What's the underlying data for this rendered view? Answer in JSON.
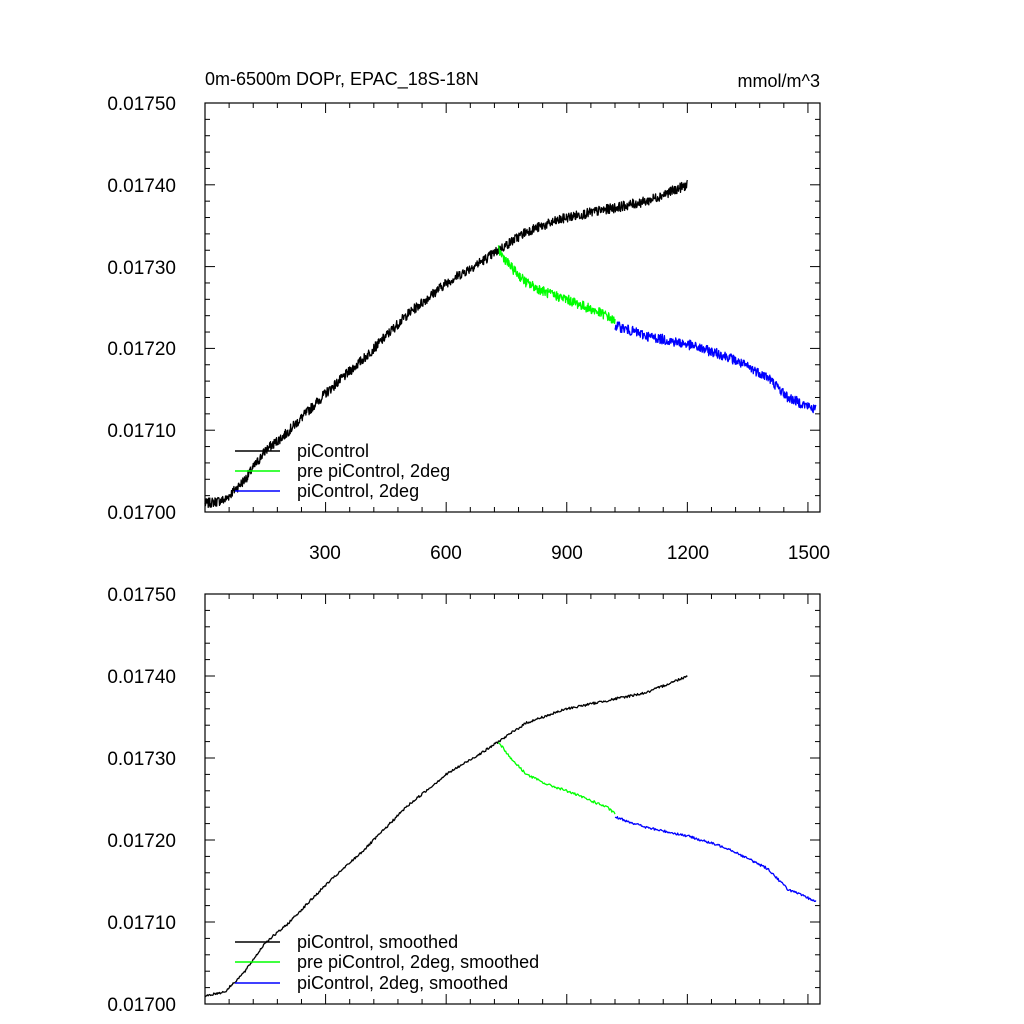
{
  "chart_data": [
    {
      "type": "line",
      "title_left": "0m-6500m DOPr, EPAC_18S-18N",
      "title_right": "mmol/m^3",
      "xlim": [
        0,
        1530
      ],
      "ylim": [
        0.017,
        0.0175
      ],
      "x_ticks": [
        300,
        600,
        900,
        1200,
        1500
      ],
      "x_tick_labels": [
        "300",
        "600",
        "900",
        "1200",
        "1500"
      ],
      "y_ticks": [
        0.017,
        0.0171,
        0.0172,
        0.0173,
        0.0174,
        0.0175
      ],
      "y_tick_labels": [
        "0.01700",
        "0.01710",
        "0.01720",
        "0.01730",
        "0.01740",
        "0.01750"
      ],
      "legend": [
        {
          "label": "piControl",
          "color": "#000000"
        },
        {
          "label": "pre piControl, 2deg",
          "color": "#00ff00"
        },
        {
          "label": "piControl, 2deg",
          "color": "#0000ff"
        }
      ],
      "series": [
        {
          "name": "piControl",
          "color": "#000000",
          "noise": 6e-06,
          "x": [
            0,
            50,
            100,
            150,
            200,
            300,
            400,
            500,
            600,
            700,
            730,
            800,
            900,
            1000,
            1100,
            1200
          ],
          "y": [
            0.01701,
            0.017015,
            0.01704,
            0.017075,
            0.017095,
            0.017145,
            0.01719,
            0.01724,
            0.01728,
            0.01731,
            0.01732,
            0.017343,
            0.01736,
            0.01737,
            0.01738,
            0.0174
          ]
        },
        {
          "name": "pre piControl, 2deg",
          "color": "#00ff00",
          "noise": 6e-06,
          "x": [
            730,
            760,
            800,
            850,
            900,
            950,
            1000,
            1020
          ],
          "y": [
            0.01732,
            0.0173,
            0.01728,
            0.017268,
            0.01726,
            0.01725,
            0.01724,
            0.017232
          ]
        },
        {
          "name": "piControl, 2deg",
          "color": "#0000ff",
          "noise": 6e-06,
          "x": [
            1020,
            1100,
            1200,
            1300,
            1400,
            1450,
            1520
          ],
          "y": [
            0.017228,
            0.017215,
            0.017205,
            0.01719,
            0.017165,
            0.01714,
            0.017125
          ]
        }
      ]
    },
    {
      "type": "line",
      "xlim": [
        0,
        1530
      ],
      "ylim": [
        0.017,
        0.0175
      ],
      "x_ticks": [
        300,
        600,
        900,
        1200,
        1500
      ],
      "y_ticks": [
        0.017,
        0.0171,
        0.0172,
        0.0173,
        0.0174,
        0.0175
      ],
      "y_tick_labels": [
        "0.01700",
        "0.01710",
        "0.01720",
        "0.01730",
        "0.01740",
        "0.01750"
      ],
      "legend": [
        {
          "label": "piControl, smoothed",
          "color": "#000000"
        },
        {
          "label": "pre piControl, 2deg, smoothed",
          "color": "#00ff00"
        },
        {
          "label": "piControl, 2deg, smoothed",
          "color": "#0000ff"
        }
      ],
      "series": [
        {
          "name": "piControl, smoothed",
          "color": "#000000",
          "noise": 1.5e-06,
          "x": [
            0,
            50,
            100,
            150,
            200,
            300,
            400,
            500,
            600,
            700,
            730,
            800,
            900,
            1000,
            1100,
            1200
          ],
          "y": [
            0.01701,
            0.017015,
            0.01704,
            0.017075,
            0.017095,
            0.017145,
            0.01719,
            0.01724,
            0.01728,
            0.01731,
            0.01732,
            0.017343,
            0.01736,
            0.01737,
            0.01738,
            0.0174
          ]
        },
        {
          "name": "pre piControl, 2deg, smoothed",
          "color": "#00ff00",
          "noise": 1.5e-06,
          "x": [
            730,
            760,
            800,
            850,
            900,
            950,
            1000,
            1020
          ],
          "y": [
            0.01732,
            0.0173,
            0.01728,
            0.017268,
            0.01726,
            0.01725,
            0.01724,
            0.017232
          ]
        },
        {
          "name": "piControl, 2deg, smoothed",
          "color": "#0000ff",
          "noise": 1.5e-06,
          "x": [
            1020,
            1100,
            1200,
            1300,
            1400,
            1450,
            1520
          ],
          "y": [
            0.017228,
            0.017215,
            0.017205,
            0.01719,
            0.017165,
            0.01714,
            0.017125
          ]
        }
      ]
    }
  ]
}
